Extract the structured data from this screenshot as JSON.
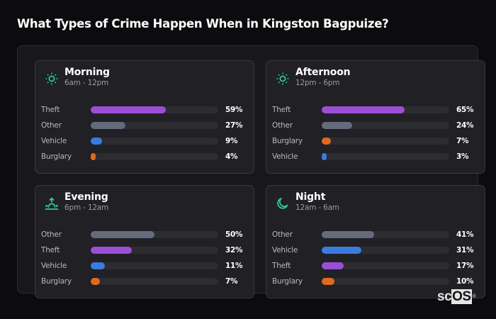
{
  "title": "What Types of Crime Happen When in Kingston Bagpuize?",
  "colors": {
    "Theft": "#9b4fd6",
    "Other": "#646b7c",
    "Vehicle": "#3a7be0",
    "Burglary": "#e0691e",
    "icon": "#2ec99a"
  },
  "watermark": {
    "prefix": "sc",
    "highlight": "OS",
    "mark": "®"
  },
  "cards": [
    {
      "name": "Morning",
      "range": "6am - 12pm",
      "icon": "sun-icon",
      "rows": [
        {
          "label": "Theft",
          "value": 59,
          "display": "59%"
        },
        {
          "label": "Other",
          "value": 27,
          "display": "27%"
        },
        {
          "label": "Vehicle",
          "value": 9,
          "display": "9%"
        },
        {
          "label": "Burglary",
          "value": 4,
          "display": "4%"
        }
      ]
    },
    {
      "name": "Afternoon",
      "range": "12pm - 6pm",
      "icon": "sun-icon",
      "rows": [
        {
          "label": "Theft",
          "value": 65,
          "display": "65%"
        },
        {
          "label": "Other",
          "value": 24,
          "display": "24%"
        },
        {
          "label": "Burglary",
          "value": 7,
          "display": "7%"
        },
        {
          "label": "Vehicle",
          "value": 3,
          "display": "3%"
        }
      ]
    },
    {
      "name": "Evening",
      "range": "6pm - 12am",
      "icon": "sunset-icon",
      "rows": [
        {
          "label": "Other",
          "value": 50,
          "display": "50%"
        },
        {
          "label": "Theft",
          "value": 32,
          "display": "32%"
        },
        {
          "label": "Vehicle",
          "value": 11,
          "display": "11%"
        },
        {
          "label": "Burglary",
          "value": 7,
          "display": "7%"
        }
      ]
    },
    {
      "name": "Night",
      "range": "12am - 6am",
      "icon": "moon-icon",
      "rows": [
        {
          "label": "Other",
          "value": 41,
          "display": "41%"
        },
        {
          "label": "Vehicle",
          "value": 31,
          "display": "31%"
        },
        {
          "label": "Theft",
          "value": 17,
          "display": "17%"
        },
        {
          "label": "Burglary",
          "value": 10,
          "display": "10%"
        }
      ]
    }
  ],
  "chart_data": [
    {
      "type": "bar",
      "title": "Morning",
      "subtitle": "6am - 12pm",
      "orientation": "horizontal",
      "categories": [
        "Theft",
        "Other",
        "Vehicle",
        "Burglary"
      ],
      "values": [
        59,
        27,
        9,
        4
      ],
      "xlim": [
        0,
        100
      ],
      "unit": "%"
    },
    {
      "type": "bar",
      "title": "Afternoon",
      "subtitle": "12pm - 6pm",
      "orientation": "horizontal",
      "categories": [
        "Theft",
        "Other",
        "Burglary",
        "Vehicle"
      ],
      "values": [
        65,
        24,
        7,
        3
      ],
      "xlim": [
        0,
        100
      ],
      "unit": "%"
    },
    {
      "type": "bar",
      "title": "Evening",
      "subtitle": "6pm - 12am",
      "orientation": "horizontal",
      "categories": [
        "Other",
        "Theft",
        "Vehicle",
        "Burglary"
      ],
      "values": [
        50,
        32,
        11,
        7
      ],
      "xlim": [
        0,
        100
      ],
      "unit": "%"
    },
    {
      "type": "bar",
      "title": "Night",
      "subtitle": "12am - 6am",
      "orientation": "horizontal",
      "categories": [
        "Other",
        "Vehicle",
        "Theft",
        "Burglary"
      ],
      "values": [
        41,
        31,
        17,
        10
      ],
      "xlim": [
        0,
        100
      ],
      "unit": "%"
    }
  ]
}
